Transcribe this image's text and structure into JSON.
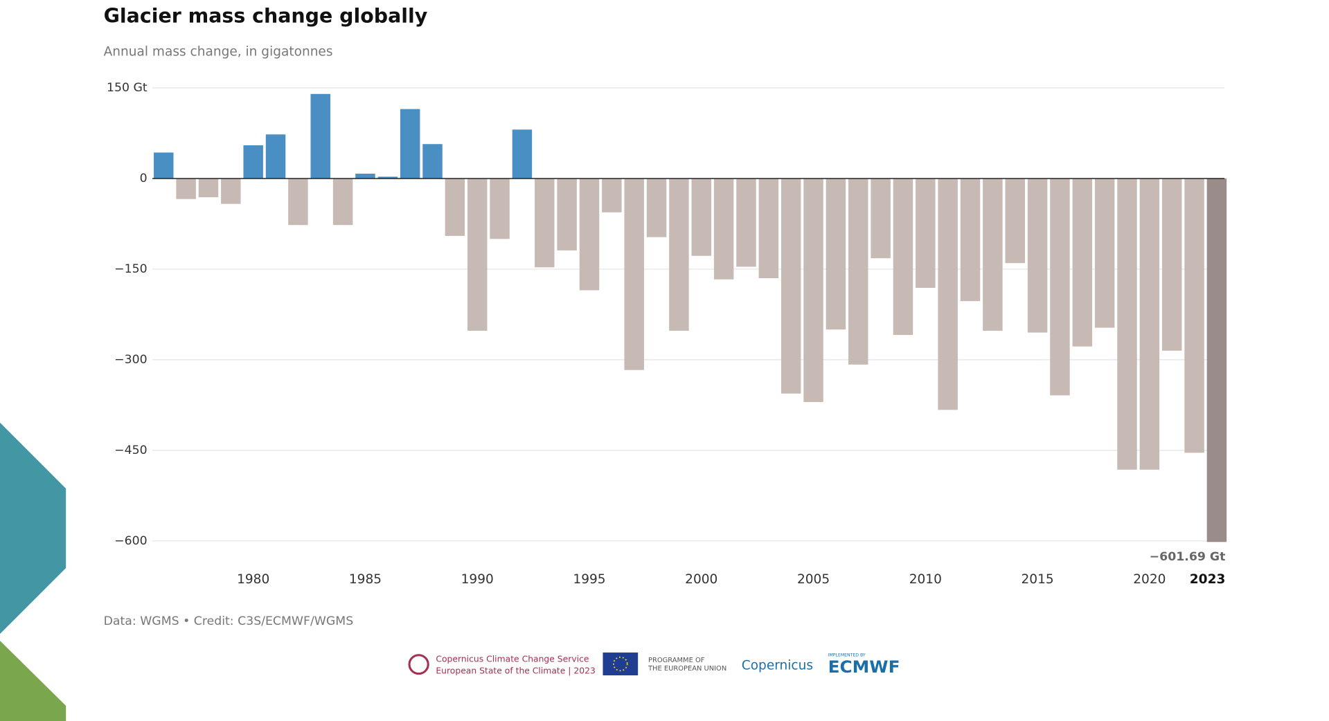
{
  "chart_data": {
    "type": "bar",
    "title": "Glacier mass change globally",
    "subtitle": "Annual mass change, in gigatonnes",
    "x": [
      1976,
      1977,
      1978,
      1979,
      1980,
      1981,
      1982,
      1983,
      1984,
      1985,
      1986,
      1987,
      1988,
      1989,
      1990,
      1991,
      1992,
      1993,
      1994,
      1995,
      1996,
      1997,
      1998,
      1999,
      2000,
      2001,
      2002,
      2003,
      2004,
      2005,
      2006,
      2007,
      2008,
      2009,
      2010,
      2011,
      2012,
      2013,
      2014,
      2015,
      2016,
      2017,
      2018,
      2019,
      2020,
      2021,
      2022,
      2023
    ],
    "values": [
      43,
      -34,
      -31,
      -42,
      55,
      73,
      -77,
      140,
      -77,
      8,
      3,
      115,
      57,
      -95,
      -252,
      -100,
      81,
      -147,
      -119,
      -185,
      -56,
      -317,
      -97,
      -252,
      -128,
      -167,
      -146,
      -165,
      -356,
      -370,
      -250,
      -308,
      -132,
      -259,
      -181,
      -383,
      -203,
      -252,
      -140,
      -255,
      -359,
      -278,
      -247,
      -482,
      -482,
      -285,
      -454,
      -601.69
    ],
    "value_labels": [
      null,
      null,
      null,
      null,
      null,
      null,
      null,
      null,
      null,
      null,
      null,
      null,
      null,
      null,
      null,
      null,
      null,
      null,
      null,
      null,
      null,
      null,
      null,
      null,
      null,
      null,
      null,
      null,
      null,
      null,
      null,
      null,
      null,
      null,
      null,
      null,
      null,
      null,
      null,
      null,
      null,
      null,
      null,
      null,
      null,
      null,
      null,
      "−601.69 Gt"
    ],
    "colors": {
      "positive": "#4a8fc4",
      "negative": "#c7bab5",
      "highlight": "#9a8c88"
    },
    "highlight_last": true,
    "xlim": [
      1975.5,
      2023.5
    ],
    "xticks": [
      1980,
      1985,
      1990,
      1995,
      2000,
      2005,
      2010,
      2015,
      2020,
      2023
    ],
    "ylim": [
      -600,
      150
    ],
    "yticks": [
      {
        "value": 150,
        "label": "150 Gt"
      },
      0,
      {
        "value": -150,
        "label": "−150"
      },
      {
        "value": -300,
        "label": "−300"
      },
      {
        "value": -450,
        "label": "−450"
      },
      {
        "value": -600,
        "label": "−600"
      }
    ],
    "grid": true,
    "source": "Data: WGMS • Credit: C3S/ECMWF/WGMS"
  },
  "logos": {
    "c3s_line1": "Copernicus Climate Change Service",
    "c3s_line2": "European State of the Climate | 2023",
    "eu_line1": "PROGRAMME OF",
    "eu_line2": "THE EUROPEAN UNION",
    "copernicus": "Copernicus",
    "ecmwf_top": "IMPLEMENTED BY",
    "ecmwf": "ECMWF"
  }
}
